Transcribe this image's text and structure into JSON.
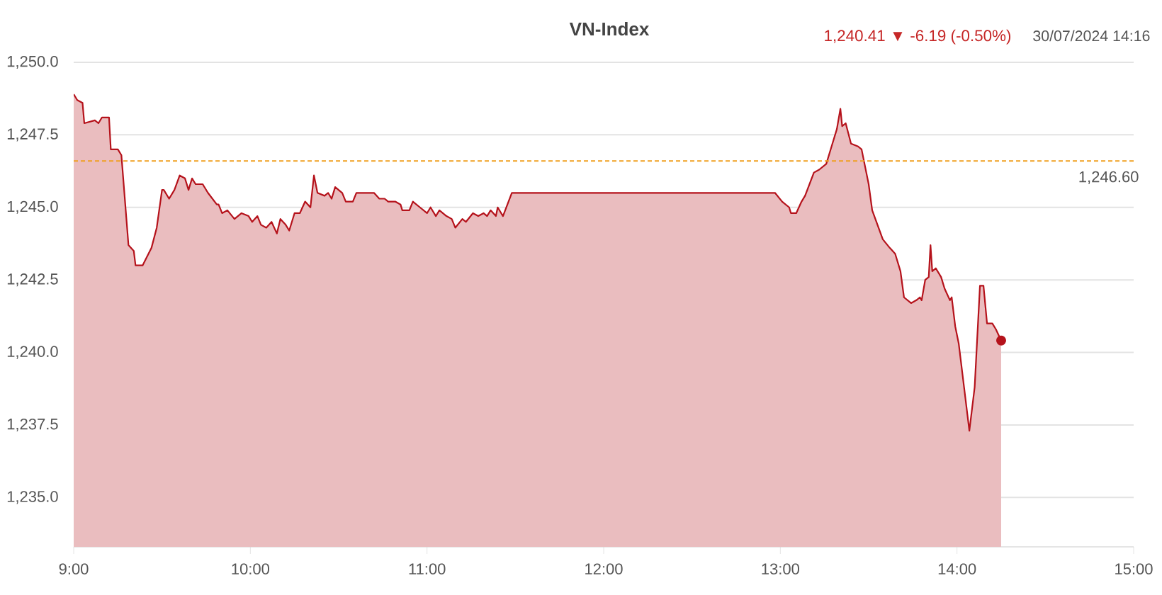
{
  "chart_data": {
    "type": "area",
    "title": "VN-Index",
    "subtitle": "1,240.41 ▼ -6.19 (-0.50%)",
    "annotations": [
      "30/07/2024 14:16"
    ],
    "xlim": [
      9,
      15
    ],
    "xticks": [
      {
        "value": 9,
        "label": "9:00"
      },
      {
        "value": 10,
        "label": "10:00"
      },
      {
        "value": 11,
        "label": "11:00"
      },
      {
        "value": 12,
        "label": "12:00"
      },
      {
        "value": 13,
        "label": "13:00"
      },
      {
        "value": 14,
        "label": "14:00"
      },
      {
        "value": 15,
        "label": "15:00"
      }
    ],
    "ylim": [
      1233.3,
      1250
    ],
    "yticks": [
      {
        "value": 1235,
        "label": "1,235.0"
      },
      {
        "value": 1237.5,
        "label": "1,237.5"
      },
      {
        "value": 1240,
        "label": "1,240.0"
      },
      {
        "value": 1242.5,
        "label": "1,242.5"
      },
      {
        "value": 1245,
        "label": "1,245.0"
      },
      {
        "value": 1247.5,
        "label": "1,247.5"
      },
      {
        "value": 1250,
        "label": "1,250.0"
      }
    ],
    "grid": "y",
    "ref_lines": [
      {
        "axis": "y",
        "value": 1246.6,
        "label": "1,246.60",
        "color": "#f0a020",
        "line_style": "dashed"
      }
    ],
    "series": [
      {
        "color": "#b5121b",
        "x": [
          9.0,
          9.02,
          9.05,
          9.06,
          9.12,
          9.14,
          9.16,
          9.2,
          9.21,
          9.25,
          9.27,
          9.31,
          9.34,
          9.35,
          9.39,
          9.44,
          9.47,
          9.5,
          9.51,
          9.54,
          9.57,
          9.6,
          9.63,
          9.65,
          9.67,
          9.69,
          9.73,
          9.76,
          9.81,
          9.82,
          9.84,
          9.87,
          9.91,
          9.95,
          9.99,
          10.01,
          10.04,
          10.06,
          10.09,
          10.12,
          10.15,
          10.17,
          10.2,
          10.22,
          10.25,
          10.28,
          10.31,
          10.34,
          10.36,
          10.38,
          10.42,
          10.44,
          10.46,
          10.48,
          10.52,
          10.54,
          10.58,
          10.6,
          10.66,
          10.7,
          10.73,
          10.76,
          10.78,
          10.82,
          10.85,
          10.86,
          10.9,
          10.92,
          10.96,
          11.0,
          11.02,
          11.05,
          11.07,
          11.11,
          11.14,
          11.16,
          11.2,
          11.22,
          11.26,
          11.29,
          11.32,
          11.34,
          11.36,
          11.39,
          11.4,
          11.43,
          11.48,
          12.97,
          13.01,
          13.05,
          13.06,
          13.09,
          13.12,
          13.14,
          13.19,
          13.22,
          13.26,
          13.29,
          13.32,
          13.34,
          13.35,
          13.37,
          13.4,
          13.44,
          13.46,
          13.5,
          13.52,
          13.58,
          13.62,
          13.65,
          13.68,
          13.7,
          13.74,
          13.77,
          13.79,
          13.8,
          13.82,
          13.84,
          13.85,
          13.86,
          13.88,
          13.91,
          13.93,
          13.96,
          13.97,
          13.99,
          14.01,
          14.04,
          14.07,
          14.1,
          14.13,
          14.15,
          14.17,
          14.2,
          14.22,
          14.25
        ],
        "values": [
          1248.9,
          1248.7,
          1248.6,
          1247.9,
          1248.0,
          1247.9,
          1248.1,
          1248.1,
          1247.0,
          1247.0,
          1246.8,
          1243.7,
          1243.5,
          1243.0,
          1243.0,
          1243.6,
          1244.3,
          1245.6,
          1245.6,
          1245.3,
          1245.6,
          1246.1,
          1246.0,
          1245.6,
          1246.0,
          1245.8,
          1245.8,
          1245.5,
          1245.1,
          1245.1,
          1244.8,
          1244.9,
          1244.6,
          1244.8,
          1244.7,
          1244.5,
          1244.7,
          1244.4,
          1244.3,
          1244.5,
          1244.1,
          1244.6,
          1244.4,
          1244.2,
          1244.8,
          1244.8,
          1245.2,
          1245.0,
          1246.1,
          1245.5,
          1245.4,
          1245.5,
          1245.3,
          1245.7,
          1245.5,
          1245.2,
          1245.2,
          1245.5,
          1245.5,
          1245.5,
          1245.3,
          1245.3,
          1245.2,
          1245.2,
          1245.1,
          1244.9,
          1244.9,
          1245.2,
          1245.0,
          1244.8,
          1245.0,
          1244.7,
          1244.9,
          1244.7,
          1244.6,
          1244.3,
          1244.6,
          1244.5,
          1244.8,
          1244.7,
          1244.8,
          1244.7,
          1244.9,
          1244.7,
          1245.0,
          1244.7,
          1245.5,
          1245.5,
          1245.2,
          1245.0,
          1244.8,
          1244.8,
          1245.2,
          1245.4,
          1246.2,
          1246.3,
          1246.5,
          1247.1,
          1247.7,
          1248.4,
          1247.8,
          1247.9,
          1247.2,
          1247.1,
          1247.0,
          1245.8,
          1244.9,
          1243.9,
          1243.6,
          1243.4,
          1242.8,
          1241.9,
          1241.7,
          1241.8,
          1241.9,
          1241.8,
          1242.5,
          1242.6,
          1243.7,
          1242.8,
          1242.9,
          1242.6,
          1242.2,
          1241.8,
          1241.9,
          1240.9,
          1240.3,
          1238.8,
          1237.3,
          1238.8,
          1242.3,
          1242.3,
          1241.0,
          1241.0,
          1240.8,
          1240.41
        ]
      },
      {
        "type": "scatter",
        "color": "#b5121b",
        "marker": "circle",
        "x": [
          14.25
        ],
        "values": [
          1240.41
        ]
      }
    ]
  }
}
